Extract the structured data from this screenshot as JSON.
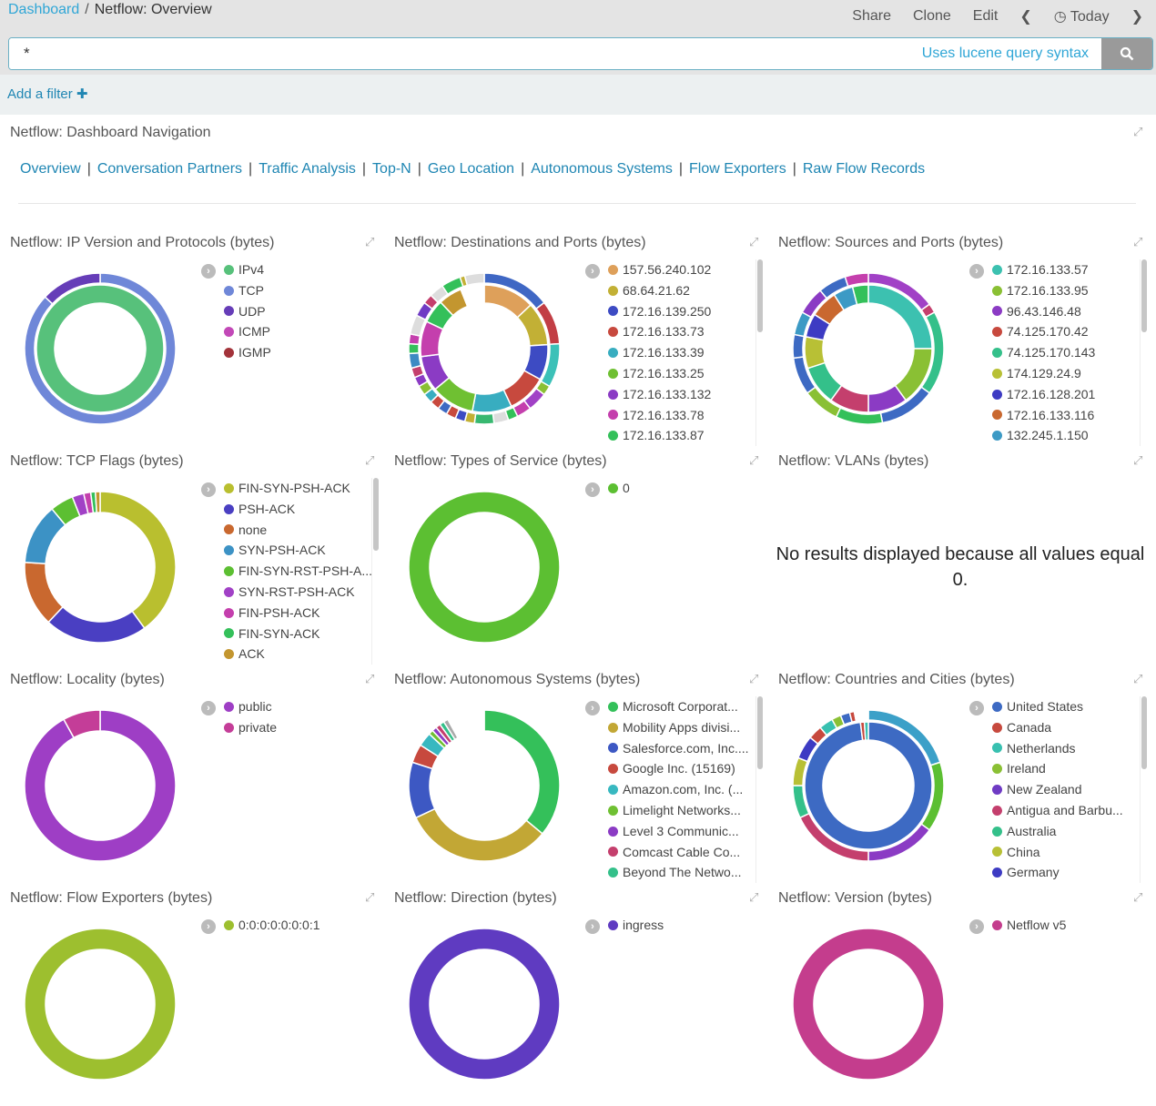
{
  "header": {
    "breadcrumb_root": "Dashboard",
    "breadcrumb_current": "Netflow: Overview",
    "menu": [
      "Share",
      "Clone",
      "Edit"
    ],
    "time": "Today"
  },
  "search": {
    "value": "*",
    "hint": "Uses lucene query syntax"
  },
  "filter": {
    "add_label": "Add a filter"
  },
  "nav_panel": {
    "title": "Netflow: Dashboard Navigation",
    "links": [
      "Overview",
      "Conversation Partners",
      "Traffic Analysis",
      "Top-N",
      "Geo Location",
      "Autonomous Systems",
      "Flow Exporters",
      "Raw Flow Records"
    ]
  },
  "panels": [
    {
      "title": "Netflow: IP Version and Protocols (bytes)",
      "scroll": false,
      "legend": [
        [
          "IPv4",
          "#57c17b"
        ],
        [
          "TCP",
          "#6f87d8"
        ],
        [
          "UDP",
          "#663db8"
        ],
        [
          "ICMP",
          "#c248b7"
        ],
        [
          "IGMP",
          "#a3333a"
        ]
      ],
      "rings": [
        [
          [
            100,
            "#57c17b"
          ]
        ],
        [
          [
            87,
            "#6f87d8"
          ],
          [
            13,
            "#663db8"
          ]
        ]
      ]
    },
    {
      "title": "Netflow: Destinations and Ports (bytes)",
      "scroll": true,
      "legend": [
        [
          "157.56.240.102",
          "#dea05a"
        ],
        [
          "68.64.21.62",
          "#c2b035"
        ],
        [
          "172.16.139.250",
          "#3d4bc3"
        ],
        [
          "172.16.133.73",
          "#c7493e"
        ],
        [
          "172.16.133.39",
          "#38adc0"
        ],
        [
          "172.16.133.25",
          "#6fc032"
        ],
        [
          "172.16.133.132",
          "#8b3bc4"
        ],
        [
          "172.16.133.78",
          "#c43fad"
        ],
        [
          "172.16.133.87",
          "#34c05a"
        ]
      ],
      "rings": [
        [
          [
            13,
            "#dea05a"
          ],
          [
            11,
            "#c2b035"
          ],
          [
            9,
            "#3d4bc3"
          ],
          [
            10,
            "#c7493e"
          ],
          [
            10,
            "#38adc0"
          ],
          [
            11,
            "#6fc032"
          ],
          [
            9,
            "#8b3bc4"
          ],
          [
            9,
            "#c43fad"
          ],
          [
            6,
            "#34c05a"
          ],
          [
            6,
            "#c3962f"
          ],
          [
            6,
            "#ffffff"
          ]
        ],
        [
          [
            14,
            "#3f67c4"
          ],
          [
            9,
            "#c23e45"
          ],
          [
            9,
            "#3cc1b8"
          ],
          [
            2,
            "#8ac034"
          ],
          [
            4,
            "#a141c6"
          ],
          [
            3,
            "#c43fad"
          ],
          [
            2,
            "#34c05a"
          ],
          [
            3,
            "#dddddd"
          ],
          [
            4,
            "#38b870"
          ],
          [
            2,
            "#c2b035"
          ],
          [
            2,
            "#3d4bc3"
          ],
          [
            2,
            "#c7493e"
          ],
          [
            2,
            "#3d6ac3"
          ],
          [
            2,
            "#c7493e"
          ],
          [
            2,
            "#38adc0"
          ],
          [
            2,
            "#8ac034"
          ],
          [
            2,
            "#8b3bc4"
          ],
          [
            2,
            "#c43f6d"
          ],
          [
            3,
            "#3d8ac3"
          ],
          [
            2,
            "#34c05a"
          ],
          [
            2,
            "#c43fad"
          ],
          [
            4,
            "#dddddd"
          ],
          [
            3,
            "#6f3bc4"
          ],
          [
            2,
            "#c43f6d"
          ],
          [
            3,
            "#dddddd"
          ],
          [
            4,
            "#34c05a"
          ],
          [
            1,
            "#c2b035"
          ],
          [
            4,
            "#dddddd"
          ]
        ]
      ]
    },
    {
      "title": "Netflow: Sources and Ports (bytes)",
      "scroll": true,
      "legend": [
        [
          "172.16.133.57",
          "#3cc1b0"
        ],
        [
          "172.16.133.95",
          "#8ac034"
        ],
        [
          "96.43.146.48",
          "#8b3bc4"
        ],
        [
          "74.125.170.42",
          "#c7493e"
        ],
        [
          "74.125.170.143",
          "#34c08a"
        ],
        [
          "174.129.24.9",
          "#b8c035"
        ],
        [
          "172.16.128.201",
          "#3d3bc3"
        ],
        [
          "172.16.133.116",
          "#c9682f"
        ],
        [
          "132.245.1.150",
          "#3c9ac5"
        ]
      ],
      "rings": [
        [
          [
            25,
            "#3cc1b0"
          ],
          [
            15,
            "#8ac034"
          ],
          [
            10,
            "#8b3bc4"
          ],
          [
            10,
            "#c43f6d"
          ],
          [
            10,
            "#34c08a"
          ],
          [
            8,
            "#b8c035"
          ],
          [
            6,
            "#3d3bc3"
          ],
          [
            7,
            "#c9682f"
          ],
          [
            5,
            "#3c9ac5"
          ],
          [
            4,
            "#34c05a"
          ]
        ],
        [
          [
            15,
            "#a141c6"
          ],
          [
            2,
            "#c43f6d"
          ],
          [
            18,
            "#34c08a"
          ],
          [
            12,
            "#3d6ac3"
          ],
          [
            10,
            "#34c05a"
          ],
          [
            8,
            "#8ac034"
          ],
          [
            8,
            "#3d6ac3"
          ],
          [
            5,
            "#3d6ac3"
          ],
          [
            5,
            "#3c9ac5"
          ],
          [
            6,
            "#8b3bc4"
          ],
          [
            6,
            "#3d6ac3"
          ],
          [
            5,
            "#c43fad"
          ]
        ]
      ]
    },
    {
      "title": "Netflow: TCP Flags (bytes)",
      "scroll": true,
      "legend": [
        [
          "FIN-SYN-PSH-ACK",
          "#b9bf2f"
        ],
        [
          "PSH-ACK",
          "#4a3fc2"
        ],
        [
          "none",
          "#c9682f"
        ],
        [
          "SYN-PSH-ACK",
          "#3c92c5"
        ],
        [
          "FIN-SYN-RST-PSH-A...",
          "#5cbf32"
        ],
        [
          "SYN-RST-PSH-ACK",
          "#a141c6"
        ],
        [
          "FIN-PSH-ACK",
          "#c43fad"
        ],
        [
          "FIN-SYN-ACK",
          "#34c05a"
        ],
        [
          "ACK",
          "#c3962f"
        ]
      ],
      "rings": [
        [
          [
            40,
            "#b9bf2f"
          ],
          [
            22,
            "#4a3fc2"
          ],
          [
            14,
            "#c9682f"
          ],
          [
            13,
            "#3c92c5"
          ],
          [
            5,
            "#5cbf32"
          ],
          [
            2.5,
            "#a141c6"
          ],
          [
            1.5,
            "#c43fad"
          ],
          [
            1,
            "#34c05a"
          ],
          [
            1,
            "#c3962f"
          ]
        ]
      ]
    },
    {
      "title": "Netflow: Types of Service (bytes)",
      "scroll": false,
      "legend": [
        [
          "0",
          "#5cbf32"
        ]
      ],
      "rings": [
        [
          [
            100,
            "#5cbf32"
          ]
        ]
      ]
    },
    {
      "title": "Netflow: VLANs (bytes)",
      "message": "No results displayed because all values equal 0."
    },
    {
      "title": "Netflow: Locality (bytes)",
      "scroll": false,
      "legend": [
        [
          "public",
          "#9e3ec5"
        ],
        [
          "private",
          "#c43d98"
        ]
      ],
      "rings": [
        [
          [
            92,
            "#9e3ec5"
          ],
          [
            8,
            "#c43d98"
          ]
        ]
      ]
    },
    {
      "title": "Netflow: Autonomous Systems (bytes)",
      "scroll": true,
      "legend": [
        [
          "Microsoft Corporat...",
          "#34c05a"
        ],
        [
          "Mobility Apps divisi...",
          "#c2a735"
        ],
        [
          "Salesforce.com, Inc....",
          "#3d58c3"
        ],
        [
          "Google Inc. (15169)",
          "#c7493e"
        ],
        [
          "Amazon.com, Inc. (...",
          "#38b8c0"
        ],
        [
          "Limelight Networks...",
          "#6fc032"
        ],
        [
          "Level 3 Communic...",
          "#8b3bc4"
        ],
        [
          "Comcast Cable Co...",
          "#c43f6d"
        ],
        [
          "Beyond The Netwo...",
          "#34c08a"
        ]
      ],
      "rings": [
        [
          [
            36,
            "#34c05a"
          ],
          [
            32,
            "#c2a735"
          ],
          [
            12,
            "#3d58c3"
          ],
          [
            4,
            "#c7493e"
          ],
          [
            3,
            "#38b8c0"
          ],
          [
            1,
            "#6fc032"
          ],
          [
            1,
            "#8b3bc4"
          ],
          [
            1,
            "#c43f6d"
          ],
          [
            1,
            "#34c08a"
          ],
          [
            1,
            "#aaaaaa"
          ],
          [
            8,
            "#ffffff"
          ]
        ]
      ]
    },
    {
      "title": "Netflow: Countries and Cities (bytes)",
      "scroll": true,
      "legend": [
        [
          "United States",
          "#3d6ac3"
        ],
        [
          "Canada",
          "#c7493e"
        ],
        [
          "Netherlands",
          "#38c0b0"
        ],
        [
          "Ireland",
          "#8ac034"
        ],
        [
          "New Zealand",
          "#6f3bc4"
        ],
        [
          "Antigua and Barbu...",
          "#c43f6d"
        ],
        [
          "Australia",
          "#34c08a"
        ],
        [
          "China",
          "#b8c035"
        ],
        [
          "Germany",
          "#3d3bc3"
        ]
      ],
      "rings": [
        [
          [
            98,
            "#3d6ac3"
          ],
          [
            1,
            "#c7493e"
          ],
          [
            1,
            "#38c0b0"
          ]
        ],
        [
          [
            20,
            "#3ba0c8"
          ],
          [
            15,
            "#5cbf32"
          ],
          [
            15,
            "#8b3bc4"
          ],
          [
            18,
            "#c43f6d"
          ],
          [
            7,
            "#34c08a"
          ],
          [
            6,
            "#b8c035"
          ],
          [
            5,
            "#3d3bc3"
          ],
          [
            3,
            "#c7493e"
          ],
          [
            3,
            "#38c0b0"
          ],
          [
            2,
            "#8ac034"
          ],
          [
            2,
            "#3d6ac3"
          ],
          [
            1,
            "#c7493e"
          ],
          [
            3,
            "#ffffff"
          ]
        ]
      ]
    },
    {
      "title": "Netflow: Flow Exporters (bytes)",
      "scroll": false,
      "legend": [
        [
          "0:0:0:0:0:0:0:1",
          "#9dbf2f"
        ]
      ],
      "rings": [
        [
          [
            100,
            "#9dbf2f"
          ]
        ]
      ]
    },
    {
      "title": "Netflow: Direction (bytes)",
      "scroll": false,
      "legend": [
        [
          "ingress",
          "#5f3bc1"
        ]
      ],
      "rings": [
        [
          [
            100,
            "#5f3bc1"
          ]
        ]
      ]
    },
    {
      "title": "Netflow: Version (bytes)",
      "scroll": false,
      "legend": [
        [
          "Netflow v5",
          "#c43d8d"
        ]
      ],
      "rings": [
        [
          [
            100,
            "#c43d8d"
          ]
        ]
      ]
    }
  ]
}
